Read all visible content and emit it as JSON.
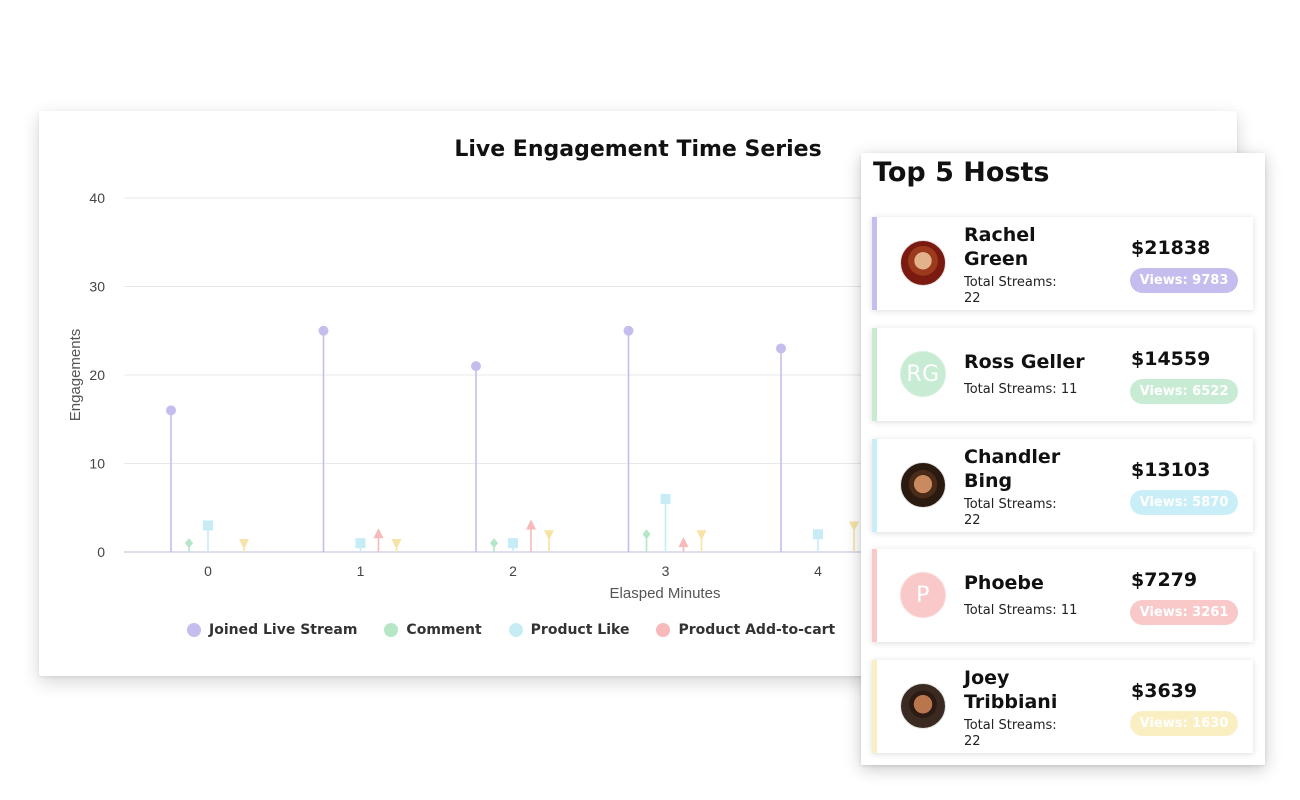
{
  "chart": {
    "title": "Live Engagement Time Series",
    "xlabel": "Elasped Minutes",
    "ylabel": "Engagements"
  },
  "chart_data": {
    "type": "scatter",
    "style": "lollipop",
    "title": "Live Engagement Time Series",
    "xlabel": "Elasped Minutes",
    "ylabel": "Engagements",
    "ylim": [
      0,
      40
    ],
    "y_ticks": [
      0,
      10,
      20,
      30,
      40
    ],
    "x_ticks": [
      "0",
      "1",
      "2",
      "3",
      "4"
    ],
    "grid": true,
    "legend_position": "bottom",
    "series": [
      {
        "name": "Joined Live Stream",
        "color": "#c6bdef",
        "marker": "circle",
        "points": [
          {
            "x": 0,
            "y": 16
          },
          {
            "x": 1,
            "y": 25
          },
          {
            "x": 2,
            "y": 21
          },
          {
            "x": 3,
            "y": 25
          },
          {
            "x": 4,
            "y": 23
          }
        ]
      },
      {
        "name": "Comment",
        "color": "#b5e6c6",
        "marker": "diamond",
        "points": [
          {
            "x": 0,
            "y": 1
          },
          {
            "x": 2,
            "y": 1
          },
          {
            "x": 3,
            "y": 2
          }
        ]
      },
      {
        "name": "Product Like",
        "color": "#c7ecf6",
        "marker": "square",
        "points": [
          {
            "x": 0,
            "y": 3
          },
          {
            "x": 1,
            "y": 1
          },
          {
            "x": 2,
            "y": 1
          },
          {
            "x": 3,
            "y": 6
          },
          {
            "x": 4,
            "y": 2
          }
        ]
      },
      {
        "name": "Product Add-to-cart",
        "color": "#f7b9b9",
        "marker": "triangle-up",
        "points": [
          {
            "x": 1,
            "y": 2
          },
          {
            "x": 2,
            "y": 3
          },
          {
            "x": 3,
            "y": 1
          }
        ]
      },
      {
        "name": "",
        "color": "#f7e3a6",
        "marker": "triangle-down",
        "points": [
          {
            "x": 0,
            "y": 1
          },
          {
            "x": 1,
            "y": 1
          },
          {
            "x": 2,
            "y": 2
          },
          {
            "x": 3,
            "y": 2
          },
          {
            "x": 4,
            "y": 3
          }
        ]
      }
    ]
  },
  "hosts": {
    "title": "Top 5 Hosts",
    "items": [
      {
        "name": "Rachel Green",
        "streams": "Total Streams: 22",
        "revenue": "$21838",
        "views": "Views: 9783",
        "color": "#c6bdef",
        "avatar": "photo",
        "initials": ""
      },
      {
        "name": "Ross Geller",
        "streams": "Total Streams: 11",
        "revenue": "$14559",
        "views": "Views: 6522",
        "color": "#c8ebd4",
        "avatar": "initials",
        "initials": "RG"
      },
      {
        "name": "Chandler Bing",
        "streams": "Total Streams: 22",
        "revenue": "$13103",
        "views": "Views: 5870",
        "color": "#c9eef7",
        "avatar": "photo",
        "initials": ""
      },
      {
        "name": "Phoebe",
        "streams": "Total Streams: 11",
        "revenue": "$7279",
        "views": "Views: 3261",
        "color": "#f9c9c9",
        "avatar": "initials",
        "initials": "P"
      },
      {
        "name": "Joey Tribbiani",
        "streams": "Total Streams: 22",
        "revenue": "$3639",
        "views": "Views: 1630",
        "color": "#faeec3",
        "avatar": "photo",
        "initials": ""
      }
    ]
  }
}
